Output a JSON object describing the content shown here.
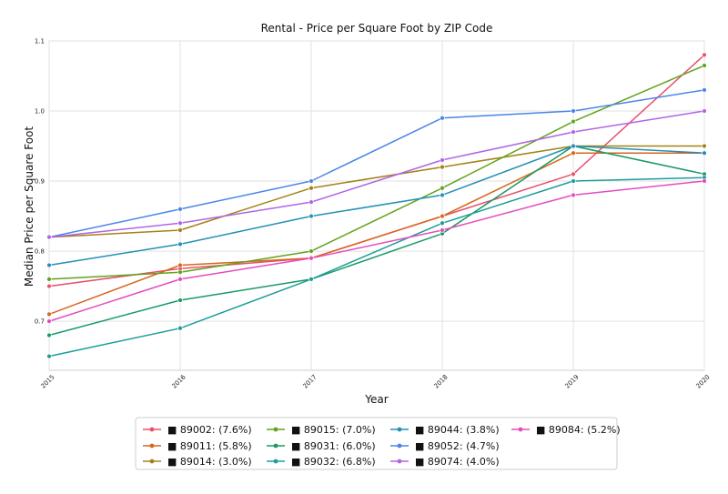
{
  "chart_data": {
    "type": "line",
    "title": "Rental - Price per Square Foot by ZIP Code",
    "xlabel": "Year",
    "ylabel": "Median Price per Square Foot",
    "x": [
      "2015",
      "2016",
      "2017",
      "2018",
      "2019",
      "2020"
    ],
    "ylim": [
      0.63,
      1.1
    ],
    "yticks": [
      "0.7",
      "0.8",
      "0.9",
      "1.0",
      "1.1"
    ],
    "grid": true,
    "legend_position": "bottom",
    "series": [
      {
        "name": "■ 89002: (7.6%)",
        "color": "#e8506c",
        "values": [
          0.75,
          0.775,
          0.79,
          0.85,
          0.91,
          1.08
        ]
      },
      {
        "name": "■ 89011: (5.8%)",
        "color": "#d9661f",
        "values": [
          0.71,
          0.78,
          0.79,
          0.85,
          0.94,
          0.94
        ]
      },
      {
        "name": "■ 89014: (3.0%)",
        "color": "#a38316",
        "values": [
          0.82,
          0.83,
          0.89,
          0.92,
          0.95,
          0.95
        ]
      },
      {
        "name": "■ 89015: (7.0%)",
        "color": "#62a21c",
        "values": [
          0.76,
          0.77,
          0.8,
          0.89,
          0.985,
          1.065
        ]
      },
      {
        "name": "■ 89031: (6.0%)",
        "color": "#1a9a64",
        "values": [
          0.68,
          0.73,
          0.76,
          0.825,
          0.95,
          0.91
        ]
      },
      {
        "name": "■ 89032: (6.8%)",
        "color": "#1c9d99",
        "values": [
          0.65,
          0.69,
          0.76,
          0.84,
          0.9,
          0.905
        ]
      },
      {
        "name": "■ 89044: (3.8%)",
        "color": "#2490b6",
        "values": [
          0.78,
          0.81,
          0.85,
          0.88,
          0.95,
          0.94
        ]
      },
      {
        "name": "■ 89052: (4.7%)",
        "color": "#4a86e8",
        "values": [
          0.82,
          0.86,
          0.9,
          0.99,
          1.0,
          1.03
        ]
      },
      {
        "name": "■ 89074: (4.0%)",
        "color": "#b165e6",
        "values": [
          0.82,
          0.84,
          0.87,
          0.93,
          0.97,
          1.0
        ]
      },
      {
        "name": "■ 89084: (5.2%)",
        "color": "#e34dbf",
        "values": [
          0.7,
          0.76,
          0.79,
          0.83,
          0.88,
          0.9
        ]
      }
    ]
  }
}
